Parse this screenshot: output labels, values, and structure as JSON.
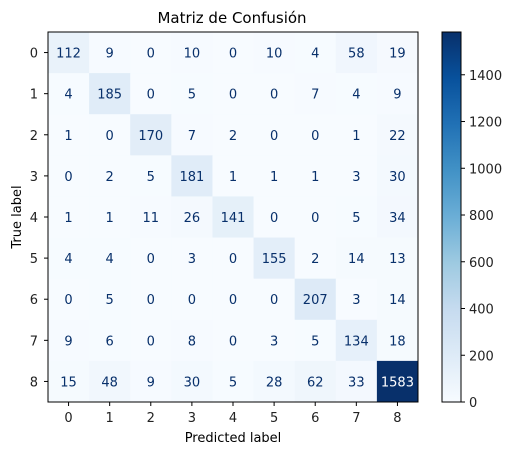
{
  "chart_data": {
    "type": "heatmap",
    "title": "Matriz de Confusión",
    "xlabel": "Predicted label",
    "ylabel": "True label",
    "x_categories": [
      "0",
      "1",
      "2",
      "3",
      "4",
      "5",
      "6",
      "7",
      "8"
    ],
    "y_categories": [
      "0",
      "1",
      "2",
      "3",
      "4",
      "5",
      "6",
      "7",
      "8"
    ],
    "matrix": [
      [
        112,
        9,
        0,
        10,
        0,
        10,
        4,
        58,
        19
      ],
      [
        4,
        185,
        0,
        5,
        0,
        0,
        7,
        4,
        9
      ],
      [
        1,
        0,
        170,
        7,
        2,
        0,
        0,
        1,
        22
      ],
      [
        0,
        2,
        5,
        181,
        1,
        1,
        1,
        3,
        30
      ],
      [
        1,
        1,
        11,
        26,
        141,
        0,
        0,
        5,
        34
      ],
      [
        4,
        4,
        0,
        3,
        0,
        155,
        2,
        14,
        13
      ],
      [
        0,
        5,
        0,
        0,
        0,
        0,
        207,
        3,
        14
      ],
      [
        9,
        6,
        0,
        8,
        0,
        3,
        5,
        134,
        18
      ],
      [
        15,
        48,
        9,
        30,
        5,
        28,
        62,
        33,
        1583
      ]
    ],
    "colormap": "Blues",
    "colormap_low": "#f7fbff",
    "colormap_high": "#08306b",
    "value_range": [
      0,
      1583
    ],
    "colorbar_ticks": [
      "0",
      "200",
      "400",
      "600",
      "800",
      "1000",
      "1200",
      "1400"
    ],
    "grid": false
  }
}
